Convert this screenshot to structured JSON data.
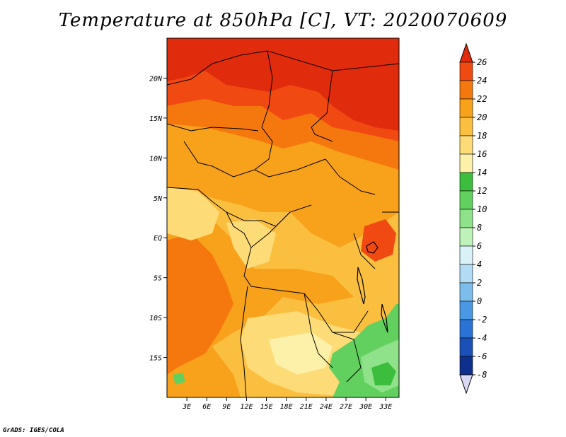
{
  "chart_data": {
    "type": "heatmap",
    "title": "Temperature at 850hPa [C], VT: 2020070609",
    "xlabel": "",
    "ylabel": "",
    "xlim": [
      0,
      35
    ],
    "ylim": [
      -20,
      25
    ],
    "x_tick_labels": [
      "3E",
      "6E",
      "9E",
      "12E",
      "15E",
      "18E",
      "21E",
      "24E",
      "27E",
      "30E",
      "33E"
    ],
    "x_ticks": [
      3,
      6,
      9,
      12,
      15,
      18,
      21,
      24,
      27,
      30,
      33
    ],
    "y_tick_labels": [
      "20N",
      "15N",
      "10N",
      "5N",
      "EQ",
      "5S",
      "10S",
      "15S"
    ],
    "y_ticks": [
      20,
      15,
      10,
      5,
      0,
      -5,
      -10,
      -15
    ],
    "colorbar": {
      "levels": [
        26,
        24,
        22,
        20,
        18,
        16,
        14,
        12,
        10,
        8,
        6,
        4,
        2,
        0,
        -2,
        -4,
        -6,
        -8
      ],
      "labels": [
        "26",
        "24",
        "22",
        "20",
        "18",
        "16",
        "14",
        "12",
        "10",
        "8",
        "6",
        "4",
        "2",
        "0",
        "-2",
        "-4",
        "-6",
        "-8"
      ],
      "colors": [
        "#e02b0c",
        "#f04a12",
        "#f5780f",
        "#f8a11a",
        "#fbbf40",
        "#fddb77",
        "#fdf0a8",
        "#3dbd3d",
        "#62d05e",
        "#8fe28a",
        "#bdf2b8",
        "#d8f2f8",
        "#b2dcf5",
        "#7dbdeb",
        "#4a98e2",
        "#2a73d4",
        "#1a50b8",
        "#0f2f8c",
        "#0b1a5c"
      ]
    },
    "grid": false,
    "legend": "right"
  },
  "footer": "GrADS: IGES/COLA"
}
